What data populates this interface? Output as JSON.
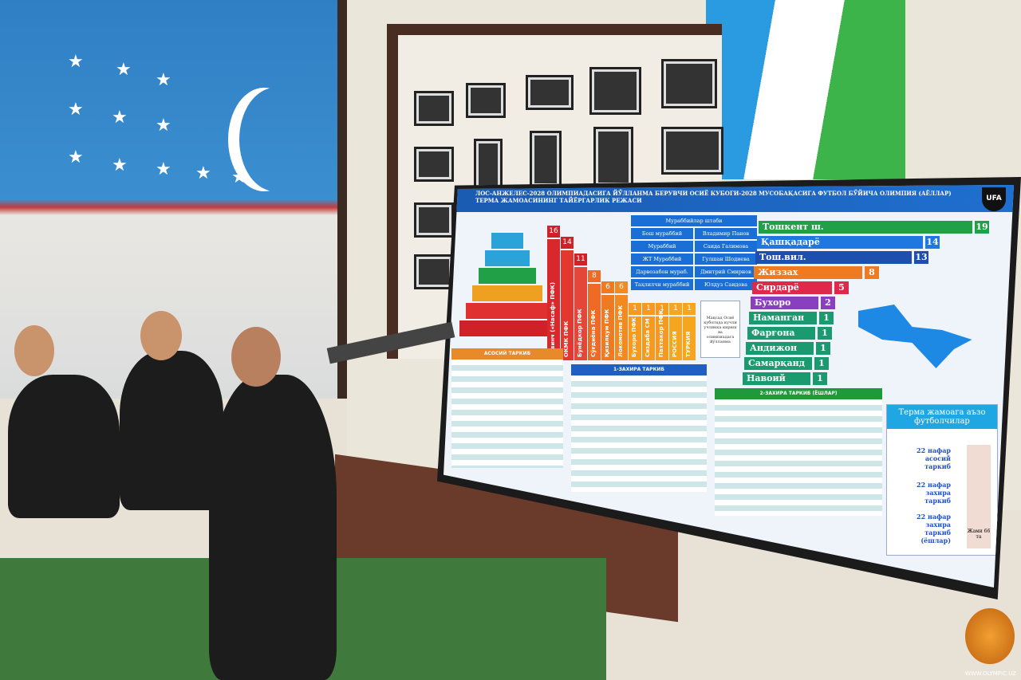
{
  "screen": {
    "header": "ЛОС-АНЖЕЛЕС-2028 ОЛИМПИАДАСИГА ЙЎЛЛАНМА БЕРУВЧИ ОСИЁ КУБОГИ-2028 МУСОБАҚАСИГА ФУТБОЛ БЎЙИЧА ОЛИМПИЯ (АЁЛЛАР) ТЕРМА ЖАМОАСИНИНГ ТАЙЁРГАРЛИК РЕЖАСИ",
    "logo": "UFA",
    "clubs": [
      {
        "label": "Севинч («Насаф» ПФК)",
        "value": 16,
        "color": "#d8282c"
      },
      {
        "label": "ОКМК ПФК",
        "value": 14,
        "color": "#e2382f"
      },
      {
        "label": "Бунёдкор ПФК",
        "value": 11,
        "color": "#e4463a"
      },
      {
        "label": "Сўғдиёна ПФК",
        "value": 8,
        "color": "#ee6a25"
      },
      {
        "label": "Қизилқум ПФК",
        "value": 6,
        "color": "#f07a22"
      },
      {
        "label": "Локомотив ПФК",
        "value": 6,
        "color": "#f28a20"
      },
      {
        "label": "Бухоро ПФК",
        "value": 1,
        "color": "#f59a1e"
      },
      {
        "label": "Сиздаба СМ",
        "value": 1,
        "color": "#f59a1e"
      },
      {
        "label": "Пахтакор ПФК",
        "value": 1,
        "color": "#f59a1e"
      },
      {
        "label": "РОССИЯ",
        "value": 1,
        "color": "#f5a51e"
      },
      {
        "label": "ТУРКИЯ",
        "value": 1,
        "color": "#f5a51e"
      }
    ],
    "coaches": {
      "title": "Мураббийлар штаби",
      "rows": [
        [
          "Бош мураббий",
          "Владимир Панов"
        ],
        [
          "Мураббий",
          "Саида Галимова"
        ],
        [
          "ЖТ Мураббий",
          "Гулшан Шодиева"
        ],
        [
          "Дарвозабон мураб.",
          "Дмитрий Смирнов"
        ],
        [
          "Таҳлилчи мураббий",
          "Юлдуз Саидова"
        ]
      ]
    },
    "goal_text": "Мақсад Осиё кубогида кучли учликка кириш ва олимпиадага йўлланма",
    "regions": [
      {
        "name": "Тошкент ш.",
        "value": 19,
        "color": "#22a048"
      },
      {
        "name": "Қашқадарё",
        "value": 14,
        "color": "#1f78e0"
      },
      {
        "name": "Тош.вил.",
        "value": 13,
        "color": "#1c4fae"
      },
      {
        "name": "Жиззах",
        "value": 8,
        "color": "#ee7a22"
      },
      {
        "name": "Сирдарё",
        "value": 5,
        "color": "#e0284a"
      },
      {
        "name": "Бухоро",
        "value": 2,
        "color": "#8a3fc0"
      },
      {
        "name": "Наманган",
        "value": 1,
        "color": "#1a9a6e"
      },
      {
        "name": "Фарғона",
        "value": 1,
        "color": "#1a9a6e"
      },
      {
        "name": "Андижон",
        "value": 1,
        "color": "#1a9a6e"
      },
      {
        "name": "Самарқанд",
        "value": 1,
        "color": "#1a9a6e"
      },
      {
        "name": "Навоий",
        "value": 1,
        "color": "#1a9a6e"
      }
    ],
    "tables": [
      {
        "title": "АСОСИЙ ТАРКИБ",
        "color": "#e8892a"
      },
      {
        "title": "1-ЗАХИРА ТАРКИБ",
        "color": "#1f5fc0"
      },
      {
        "title": "2-ЗАХИРА ТАРКИБ (ЁШЛАР)",
        "color": "#1e9a3a"
      }
    ],
    "players_box": {
      "title": "Терма жамоага аъзо футболчилар",
      "main": "22 нафар асосий таркиб",
      "reserve": "22 нафар захира таркиб",
      "youth": "22 нафар захира таркиб (ёшлар)",
      "total": "Жами 66 та"
    }
  },
  "watermark": "WWW.OLYMPIC.UZ"
}
